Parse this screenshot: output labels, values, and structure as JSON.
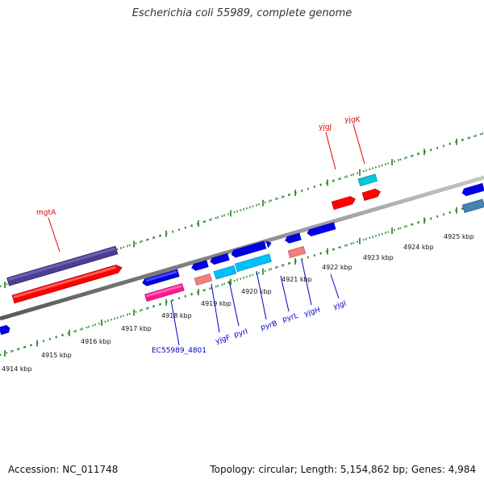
{
  "title": "Escherichia coli 55989, complete genome",
  "footer": {
    "accession": "Accession: NC_011748",
    "summary": "Topology: circular; Length: 5,154,862 bp; Genes: 4,984"
  },
  "colors": {
    "backbone": "#8a8a8a",
    "tick": "#1f7f1f",
    "label_red": "#dd0000",
    "label_blue": "#0000cc"
  },
  "scale_labels": [
    "4914 kbp",
    "4915 kbp",
    "4916 kbp",
    "4917 kbp",
    "4918 kbp",
    "4919 kbp",
    "4920 kbp",
    "4921 kbp",
    "4922 kbp",
    "4923 kbp",
    "4924 kbp",
    "4925 kbp"
  ],
  "gene_labels": {
    "mgtA": "mgtA",
    "yjgJ": "yjgJ",
    "yjgK": "yjgK",
    "EC55989_4801": "EC55989_4801",
    "yjgF": "yjgF",
    "pyrI": "pyrI",
    "pyrB": "pyrB",
    "pyrL": "pyrL",
    "yjgH": "yjgH",
    "yjgI": "yjgI"
  }
}
